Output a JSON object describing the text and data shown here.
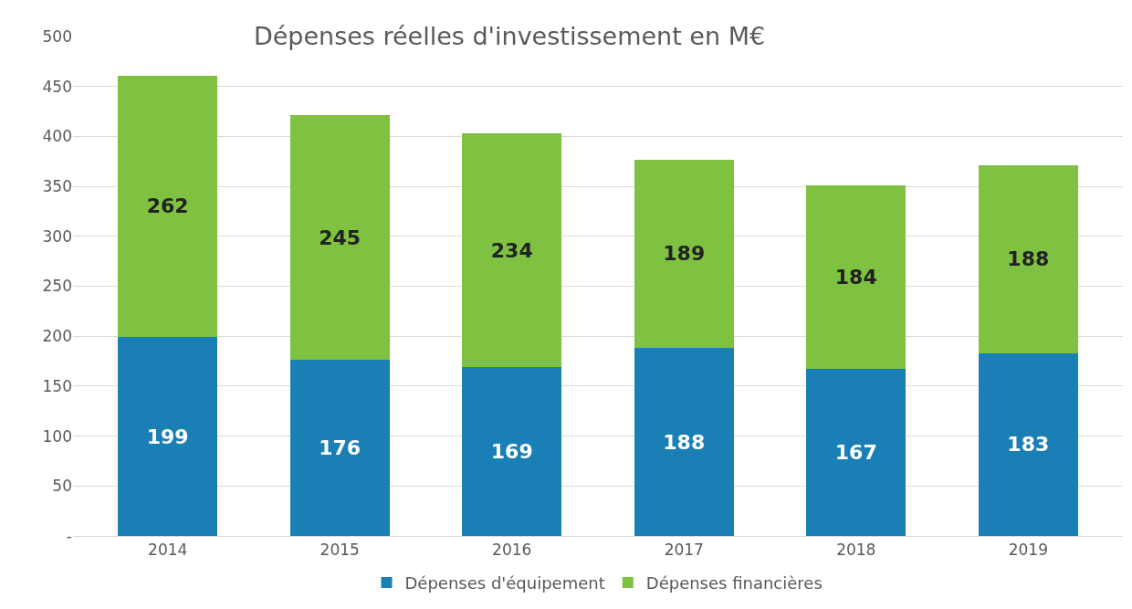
{
  "chart_data": {
    "type": "bar",
    "title": "Dépenses réelles d'investissement en M€",
    "categories": [
      "2014",
      "2015",
      "2016",
      "2017",
      "2018",
      "2019"
    ],
    "stacked": true,
    "series": [
      {
        "name": "Dépenses d'équipement",
        "color": "#1a7fb5",
        "values": [
          199,
          176,
          169,
          188,
          167,
          183
        ]
      },
      {
        "name": "Dépenses financières",
        "color": "#7fc241",
        "values": [
          262,
          245,
          234,
          189,
          184,
          188
        ]
      }
    ],
    "ylim": [
      0,
      500
    ],
    "yticks": [
      {
        "value": 0,
        "label": "-"
      },
      50,
      100,
      150,
      200,
      250,
      300,
      350,
      400,
      450,
      500
    ],
    "grid": "y",
    "legend": "bottom",
    "data_labels": true
  }
}
